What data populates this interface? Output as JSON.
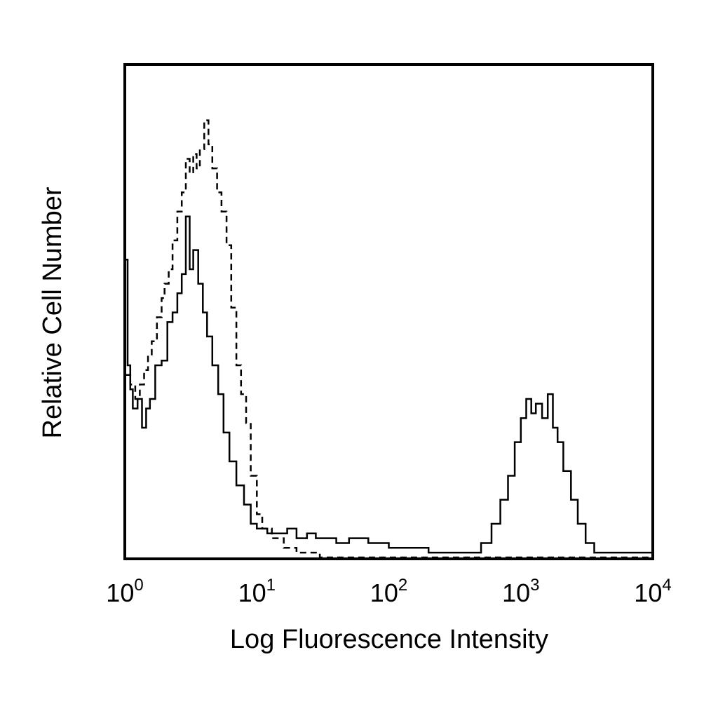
{
  "chart_data": {
    "type": "line",
    "title": "",
    "xlabel": "Log Fluorescence Intensity",
    "ylabel": "Relative Cell Number",
    "xscale": "log",
    "xlim": [
      1,
      10000
    ],
    "ylim": [
      0,
      100
    ],
    "grid": false,
    "legend": "none",
    "x_ticks": [
      {
        "base": "10",
        "exp": "0",
        "value": 1
      },
      {
        "base": "10",
        "exp": "1",
        "value": 10
      },
      {
        "base": "10",
        "exp": "2",
        "value": 100
      },
      {
        "base": "10",
        "exp": "3",
        "value": 1000
      },
      {
        "base": "10",
        "exp": "4",
        "value": 10000
      }
    ],
    "series": [
      {
        "style": "solid",
        "color": "#000000",
        "points": [
          [
            1.0,
            62
          ],
          [
            1.05,
            40
          ],
          [
            1.1,
            35
          ],
          [
            1.15,
            31
          ],
          [
            1.25,
            33
          ],
          [
            1.35,
            27
          ],
          [
            1.45,
            31
          ],
          [
            1.55,
            33
          ],
          [
            1.7,
            40
          ],
          [
            1.9,
            41
          ],
          [
            2.1,
            49
          ],
          [
            2.3,
            51
          ],
          [
            2.5,
            55
          ],
          [
            2.7,
            59
          ],
          [
            2.9,
            71
          ],
          [
            3.1,
            60
          ],
          [
            3.3,
            64
          ],
          [
            3.6,
            57
          ],
          [
            3.9,
            51
          ],
          [
            4.2,
            46
          ],
          [
            4.6,
            40
          ],
          [
            5.1,
            34
          ],
          [
            5.6,
            26
          ],
          [
            6.2,
            20
          ],
          [
            7.0,
            15
          ],
          [
            8.0,
            11
          ],
          [
            9.0,
            7
          ],
          [
            10.0,
            6
          ],
          [
            12.0,
            5
          ],
          [
            14.0,
            5
          ],
          [
            17.0,
            6
          ],
          [
            20.0,
            4
          ],
          [
            24.0,
            5
          ],
          [
            28.0,
            4
          ],
          [
            33.0,
            4
          ],
          [
            40.0,
            3
          ],
          [
            50.0,
            4
          ],
          [
            60.0,
            4
          ],
          [
            70.0,
            3
          ],
          [
            85.0,
            3
          ],
          [
            100.0,
            2
          ],
          [
            130.0,
            2
          ],
          [
            160.0,
            2
          ],
          [
            200.0,
            1
          ],
          [
            250.0,
            1
          ],
          [
            320.0,
            1
          ],
          [
            400.0,
            1
          ],
          [
            500.0,
            3
          ],
          [
            600.0,
            7
          ],
          [
            700.0,
            12
          ],
          [
            800.0,
            17
          ],
          [
            900.0,
            24
          ],
          [
            1000.0,
            29
          ],
          [
            1100.0,
            33
          ],
          [
            1200.0,
            30
          ],
          [
            1300.0,
            32
          ],
          [
            1450.0,
            29
          ],
          [
            1600.0,
            34
          ],
          [
            1750.0,
            27
          ],
          [
            1900.0,
            24
          ],
          [
            2100.0,
            18
          ],
          [
            2400.0,
            12
          ],
          [
            2700.0,
            7
          ],
          [
            3100.0,
            3
          ],
          [
            3600.0,
            1
          ],
          [
            4500.0,
            1
          ],
          [
            6000.0,
            1
          ],
          [
            8000.0,
            1
          ],
          [
            10000.0,
            1
          ]
        ]
      },
      {
        "style": "dashed",
        "color": "#000000",
        "points": [
          [
            1.0,
            38
          ],
          [
            1.1,
            36
          ],
          [
            1.2,
            33
          ],
          [
            1.3,
            36
          ],
          [
            1.4,
            39
          ],
          [
            1.5,
            42
          ],
          [
            1.6,
            45
          ],
          [
            1.75,
            50
          ],
          [
            1.9,
            54
          ],
          [
            2.0,
            57
          ],
          [
            2.15,
            60
          ],
          [
            2.3,
            66
          ],
          [
            2.5,
            72
          ],
          [
            2.7,
            76
          ],
          [
            2.9,
            83
          ],
          [
            3.1,
            80
          ],
          [
            3.3,
            84
          ],
          [
            3.5,
            81
          ],
          [
            3.7,
            85
          ],
          [
            4.0,
            91
          ],
          [
            4.3,
            86
          ],
          [
            4.6,
            81
          ],
          [
            5.0,
            76
          ],
          [
            5.4,
            72
          ],
          [
            5.9,
            65
          ],
          [
            6.4,
            52
          ],
          [
            7.0,
            40
          ],
          [
            7.6,
            34
          ],
          [
            8.3,
            28
          ],
          [
            9.0,
            17
          ],
          [
            10.0,
            9
          ],
          [
            11.0,
            6
          ],
          [
            13.0,
            4
          ],
          [
            16.0,
            2
          ],
          [
            20.0,
            1
          ],
          [
            30.0,
            0
          ],
          [
            50.0,
            0
          ],
          [
            100.0,
            0
          ],
          [
            300.0,
            0
          ],
          [
            1000.0,
            0
          ],
          [
            3000.0,
            0
          ],
          [
            10000.0,
            0
          ]
        ]
      }
    ]
  }
}
